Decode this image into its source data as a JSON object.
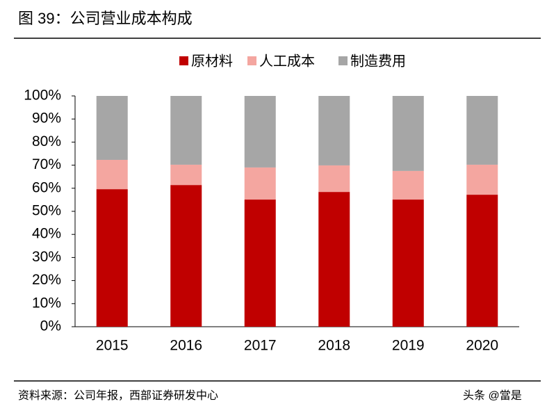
{
  "chart_data": {
    "type": "stacked_bar",
    "title": "图 39：公司营业成本构成",
    "source": "资料来源：公司年报，西部证券研发中心",
    "watermark": "头条 @當是",
    "categories": [
      "2015",
      "2016",
      "2017",
      "2018",
      "2019",
      "2020"
    ],
    "series": [
      {
        "name": "原材料",
        "color": "#c00000",
        "values": [
          59.6,
          61.4,
          55.1,
          58.4,
          55.1,
          57.2
        ]
      },
      {
        "name": "人工成本",
        "color": "#f4a6a0",
        "values": [
          12.7,
          8.8,
          13.9,
          11.5,
          12.4,
          13.0
        ]
      },
      {
        "name": "制造费用",
        "color": "#a6a6a6",
        "values": [
          27.7,
          29.8,
          31.0,
          30.1,
          32.5,
          29.8
        ]
      }
    ],
    "ylim": [
      0,
      100
    ],
    "yticks": [
      {
        "value": 0,
        "label": "0%"
      },
      {
        "value": 10,
        "label": "10%"
      },
      {
        "value": 20,
        "label": "20%"
      },
      {
        "value": 30,
        "label": "30%"
      },
      {
        "value": 40,
        "label": "40%"
      },
      {
        "value": 50,
        "label": "50%"
      },
      {
        "value": 60,
        "label": "60%"
      },
      {
        "value": 70,
        "label": "70%"
      },
      {
        "value": 80,
        "label": "80%"
      },
      {
        "value": 90,
        "label": "90%"
      },
      {
        "value": 100,
        "label": "100%"
      }
    ],
    "legend": "top",
    "grid": false
  }
}
